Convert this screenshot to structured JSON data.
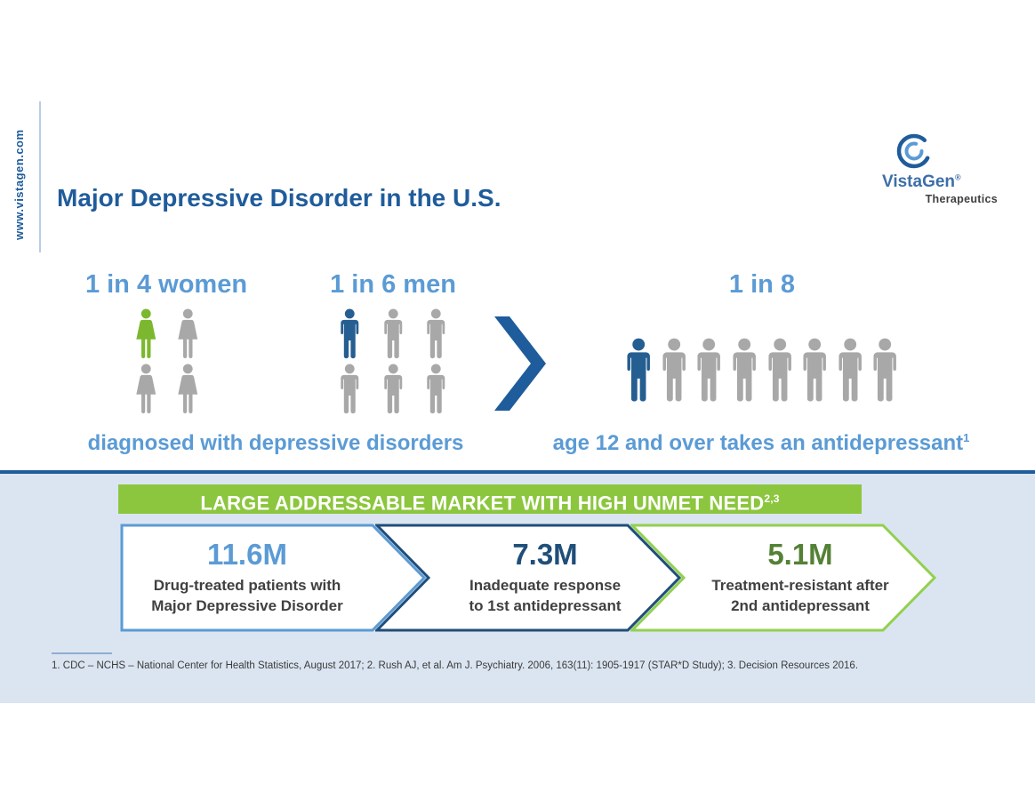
{
  "branding": {
    "website_vertical": "www.vistagen.com",
    "logo_brand": "VistaGen",
    "logo_registered": "®",
    "logo_subtitle": "Therapeutics"
  },
  "header": {
    "title": "Major Depressive Disorder in the U.S."
  },
  "stats": {
    "women": {
      "headline": "1 in 4 women",
      "total": 4,
      "highlighted": 1,
      "per_row": 2,
      "icon": "female",
      "highlight_color": "#7CB82F"
    },
    "men": {
      "headline": "1 in 6 men",
      "total": 6,
      "highlighted": 1,
      "per_row": 3,
      "icon": "male",
      "highlight_color": "#255E91"
    },
    "eight": {
      "headline": "1 in 8",
      "total": 8,
      "highlighted": 1,
      "per_row": 8,
      "icon": "male",
      "highlight_color": "#255E91"
    },
    "caption_left": "diagnosed with depressive disorders",
    "caption_right": "age 12 and over takes an antidepressant",
    "caption_right_superscript": "1"
  },
  "market": {
    "banner": "LARGE ADDRESSABLE MARKET WITH HIGH UNMET NEED",
    "banner_superscript": "2,3",
    "funnel": [
      {
        "value": "11.6M",
        "line1": "Drug-treated patients with",
        "line2": "Major Depressive Disorder",
        "outline_color": "#5B9BD5",
        "value_color": "#5B9BD5"
      },
      {
        "value": "7.3M",
        "line1": "Inadequate response",
        "line2": "to 1st antidepressant",
        "outline_color": "#1F4E79",
        "value_color": "#1F4E79"
      },
      {
        "value": "5.1M",
        "line1": "Treatment-resistant after",
        "line2": "2nd antidepressant",
        "outline_color": "#92D050",
        "value_color": "#538135"
      }
    ]
  },
  "footnote": "1. CDC – NCHS – National Center for Health Statistics, August 2017; 2. Rush AJ, et al. Am J. Psychiatry. 2006, 163(11): 1905-1917 (STAR*D Study); 3. Decision Resources 2016.",
  "colors": {
    "gray_figure": "#A8A8A8",
    "heading_blue": "#5B9BD5",
    "navy": "#1F5C9B",
    "band_background": "#DBE5F1",
    "banner_green": "#8CC63E"
  }
}
